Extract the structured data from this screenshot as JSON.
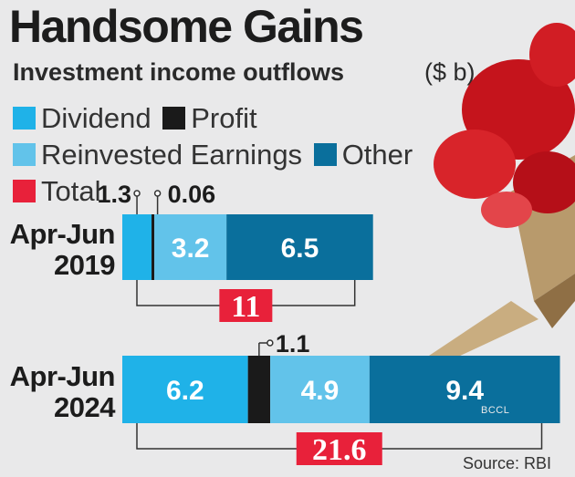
{
  "chart_data": {
    "type": "bar",
    "title": "Handsome Gains",
    "subtitle": "Investment income outflows",
    "unit": "($ b)",
    "legend": [
      {
        "name": "Dividend",
        "color": "#1fb2e8"
      },
      {
        "name": "Profit",
        "color": "#1a1a1a"
      },
      {
        "name": "Reinvested Earnings",
        "color": "#62c3ea"
      },
      {
        "name": "Other",
        "color": "#0a6f9c"
      },
      {
        "name": "Total",
        "color": "#e8213a"
      }
    ],
    "categories": [
      "Apr-Jun 2019",
      "Apr-Jun 2024"
    ],
    "category_lines": [
      [
        "Apr-Jun",
        "2019"
      ],
      [
        "Apr-Jun",
        "2024"
      ]
    ],
    "series": [
      {
        "name": "Dividend",
        "values": [
          1.3,
          6.2
        ]
      },
      {
        "name": "Profit",
        "values": [
          0.06,
          1.1
        ]
      },
      {
        "name": "Reinvested Earnings",
        "values": [
          3.2,
          4.9
        ]
      },
      {
        "name": "Other",
        "values": [
          6.5,
          9.4
        ]
      }
    ],
    "value_labels": [
      [
        "1.3",
        "0.06",
        "3.2",
        "6.5"
      ],
      [
        "6.2",
        "1.1",
        "4.9",
        "9.4"
      ]
    ],
    "totals": [
      11,
      21.6
    ],
    "total_labels": [
      "11",
      "21.6"
    ],
    "source": "Source: RBI",
    "credit": "BCCL"
  }
}
